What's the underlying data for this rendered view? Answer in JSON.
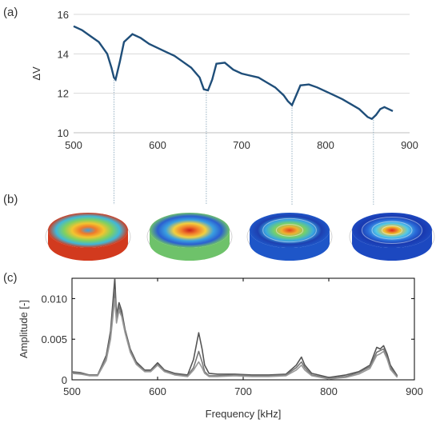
{
  "panel_labels": [
    "(a)",
    "(b)",
    "(c)"
  ],
  "colors": {
    "line_a": "#1f4e79",
    "grid": "#d9d9d9",
    "axis": "#bfbfbf",
    "frame_c": "#000000",
    "line_c": [
      "#555555",
      "#777777",
      "#999999"
    ]
  },
  "chart_data": [
    {
      "type": "line",
      "panel": "(a)",
      "title": "",
      "xlabel": "",
      "ylabel": "ΔV",
      "xlim": [
        500,
        900
      ],
      "ylim": [
        10,
        16
      ],
      "xticks": [
        500,
        600,
        700,
        800,
        900
      ],
      "yticks": [
        10,
        12,
        14,
        16
      ],
      "grid": "horizontal",
      "series": [
        {
          "x": [
            500,
            510,
            520,
            530,
            540,
            545,
            548,
            550,
            555,
            560,
            570,
            580,
            590,
            600,
            610,
            620,
            630,
            640,
            650,
            655,
            660,
            665,
            670,
            680,
            690,
            700,
            710,
            720,
            730,
            740,
            750,
            755,
            760,
            765,
            770,
            780,
            790,
            800,
            810,
            820,
            830,
            840,
            850,
            855,
            860,
            865,
            870,
            875,
            880
          ],
          "y": [
            15.4,
            15.2,
            14.9,
            14.6,
            14.0,
            13.3,
            12.8,
            12.7,
            13.6,
            14.6,
            15.0,
            14.8,
            14.5,
            14.3,
            14.1,
            13.9,
            13.6,
            13.3,
            12.8,
            12.2,
            12.15,
            12.7,
            13.5,
            13.55,
            13.2,
            13.0,
            12.9,
            12.8,
            12.55,
            12.3,
            11.9,
            11.6,
            11.4,
            11.9,
            12.4,
            12.45,
            12.3,
            12.1,
            11.9,
            11.7,
            11.45,
            11.2,
            10.8,
            10.7,
            10.9,
            11.2,
            11.3,
            11.2,
            11.1
          ]
        }
      ],
      "guide_lines_x": [
        548,
        658,
        760,
        857
      ]
    },
    {
      "type": "line",
      "panel": "(c)",
      "title": "",
      "xlabel": "Frequency [kHz]",
      "ylabel": "Amplitude [-]",
      "xlim": [
        500,
        900
      ],
      "ylim": [
        0,
        0.0125
      ],
      "xticks": [
        500,
        600,
        700,
        800,
        900
      ],
      "yticks": [
        0,
        0.005,
        0.01
      ],
      "ytick_labels": [
        "0",
        "0.005",
        "0.010"
      ],
      "grid": "none",
      "x": [
        500,
        510,
        520,
        530,
        540,
        545,
        550,
        552,
        555,
        558,
        562,
        568,
        575,
        585,
        592,
        600,
        608,
        620,
        635,
        642,
        648,
        652,
        655,
        660,
        670,
        690,
        710,
        730,
        750,
        762,
        768,
        772,
        780,
        800,
        820,
        835,
        848,
        856,
        860,
        864,
        868,
        872,
        880
      ],
      "series": [
        {
          "values": [
            0.0009,
            0.0008,
            0.0006,
            0.0006,
            0.003,
            0.006,
            0.0125,
            0.008,
            0.0095,
            0.0085,
            0.0062,
            0.0038,
            0.0022,
            0.0012,
            0.0012,
            0.0021,
            0.0012,
            0.0008,
            0.0006,
            0.0025,
            0.0058,
            0.0038,
            0.0018,
            0.0008,
            0.0007,
            0.0007,
            0.0006,
            0.0006,
            0.0007,
            0.0018,
            0.0028,
            0.0018,
            0.0008,
            0.0003,
            0.0006,
            0.001,
            0.0018,
            0.004,
            0.0038,
            0.0042,
            0.0032,
            0.0018,
            0.0005
          ]
        },
        {
          "values": [
            0.001,
            0.0009,
            0.0006,
            0.0006,
            0.0028,
            0.0055,
            0.011,
            0.0075,
            0.009,
            0.008,
            0.006,
            0.0036,
            0.002,
            0.0011,
            0.0011,
            0.0019,
            0.0011,
            0.0007,
            0.0005,
            0.0015,
            0.0035,
            0.0022,
            0.001,
            0.0005,
            0.0005,
            0.0006,
            0.0005,
            0.0005,
            0.0006,
            0.0015,
            0.0022,
            0.0015,
            0.0006,
            0.0002,
            0.0004,
            0.0009,
            0.0016,
            0.0034,
            0.0036,
            0.0038,
            0.0028,
            0.0015,
            0.0004
          ]
        },
        {
          "values": [
            0.0008,
            0.0007,
            0.0005,
            0.0005,
            0.0024,
            0.005,
            0.01,
            0.007,
            0.0085,
            0.0078,
            0.0058,
            0.0034,
            0.0019,
            0.001,
            0.001,
            0.0018,
            0.001,
            0.0006,
            0.0004,
            0.0012,
            0.0022,
            0.0015,
            0.0008,
            0.0004,
            0.0004,
            0.0005,
            0.0004,
            0.0004,
            0.0005,
            0.0012,
            0.0018,
            0.0012,
            0.0005,
            0.0001,
            0.0003,
            0.0007,
            0.0014,
            0.003,
            0.0032,
            0.0035,
            0.0026,
            0.0013,
            0.0003
          ]
        }
      ]
    }
  ],
  "mode_images": [
    {
      "name": "mode-shape-1",
      "base_color": "#d23a1e",
      "center_color": "#3aa0e0",
      "ring_colors": [
        "#f07a2a",
        "#f2c530",
        "#80d060",
        "#40b8d8"
      ]
    },
    {
      "name": "mode-shape-2",
      "base_color": "#6ec26a",
      "center_color": "#c81e1e",
      "ring_colors": [
        "#f07a2a",
        "#f2d040",
        "#3aa0e0",
        "#2b5fd0"
      ]
    },
    {
      "name": "mode-shape-3",
      "base_color": "#1e56c8",
      "center_color": "#e04020",
      "ring_colors": [
        "#f0b030",
        "#70d070",
        "#3aa8e0",
        "#1e40b0"
      ]
    },
    {
      "name": "mode-shape-4",
      "base_color": "#1c48c0",
      "center_color": "#e02020",
      "ring_colors": [
        "#f0c030",
        "#50c8e8",
        "#2a6ad8",
        "#1a3ab0"
      ]
    }
  ]
}
